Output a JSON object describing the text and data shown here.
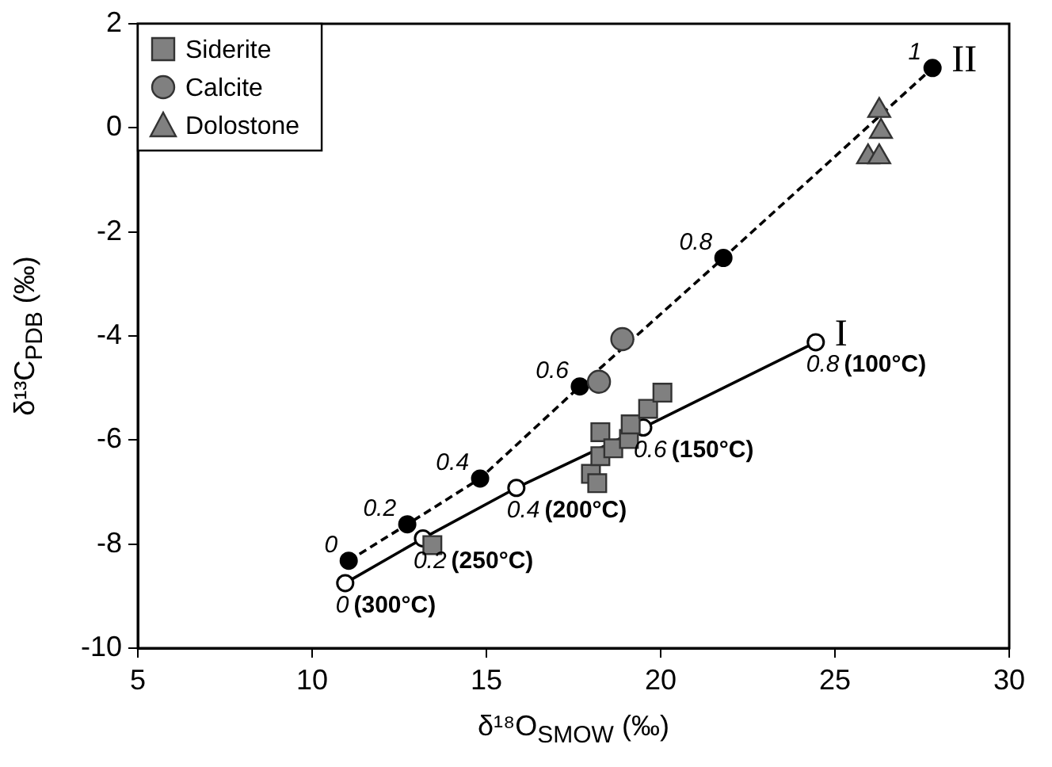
{
  "chart_data": {
    "type": "scatter",
    "xlabel": "δ¹⁸O$_{SMOW}$ (‰)",
    "ylabel": "δ¹³C$_{PDB}$ (‰)",
    "xlim": [
      5,
      30
    ],
    "xticks": [
      5,
      10,
      15,
      20,
      25,
      30
    ],
    "ylim": [
      -10,
      2
    ],
    "yticks": [
      -10,
      -8,
      -6,
      -4,
      -2,
      0,
      2
    ],
    "grid": false,
    "legend": "top left",
    "series": [
      {
        "name": "Siderite",
        "marker": "square",
        "color": "#808080",
        "x": [
          13.45,
          18.0,
          18.18,
          18.27,
          18.27,
          18.64,
          19.09,
          19.14,
          19.64,
          20.05
        ],
        "values": [
          -8.02,
          -6.65,
          -6.83,
          -5.85,
          -6.31,
          -6.16,
          -5.98,
          -5.7,
          -5.4,
          -5.09
        ]
      },
      {
        "name": "Calcite",
        "marker": "circle",
        "color": "#808080",
        "x": [
          18.23,
          18.9
        ],
        "values": [
          -4.88,
          -4.06
        ]
      },
      {
        "name": "Dolostone",
        "marker": "triangle",
        "color": "#808080",
        "x": [
          25.95,
          26.27,
          26.27,
          26.32
        ],
        "values": [
          -0.56,
          -0.56,
          0.33,
          -0.07
        ]
      },
      {
        "type": "line",
        "marker": "circle",
        "line_style": "dashed",
        "color": "#000000",
        "x": [
          11.05,
          12.73,
          14.82,
          17.68,
          21.8,
          27.8
        ],
        "values": [
          -8.32,
          -7.62,
          -6.74,
          -4.97,
          -2.5,
          1.15
        ]
      },
      {
        "type": "line",
        "marker": "circle",
        "line_style": "solid",
        "color": "#000000",
        "x": [
          10.95,
          13.18,
          15.86,
          19.5,
          24.45
        ],
        "values": [
          -8.75,
          -7.89,
          -6.92,
          -5.76,
          -4.12
        ]
      }
    ],
    "annotations": [
      {
        "text": "0",
        "x": 11.05,
        "y": -8.32
      },
      {
        "text": "0.2",
        "x": 12.73,
        "y": -7.62
      },
      {
        "text": "0.4",
        "x": 14.82,
        "y": -6.74
      },
      {
        "text": "0.6",
        "x": 17.68,
        "y": -4.97
      },
      {
        "text": "0.8",
        "x": 21.8,
        "y": -2.5
      },
      {
        "text": "1",
        "x": 27.8,
        "y": 1.15
      },
      {
        "text": "0 (300°C)",
        "x": 10.95,
        "y": -8.75
      },
      {
        "text": "0.2 (250°C)",
        "x": 13.18,
        "y": -7.89
      },
      {
        "text": "0.4 (200°C)",
        "x": 15.86,
        "y": -6.92
      },
      {
        "text": "0.6 (150°C)",
        "x": 19.5,
        "y": -5.76
      },
      {
        "text": "0.8 (100°C)",
        "x": 24.45,
        "y": -4.12
      },
      "II",
      "I"
    ]
  }
}
